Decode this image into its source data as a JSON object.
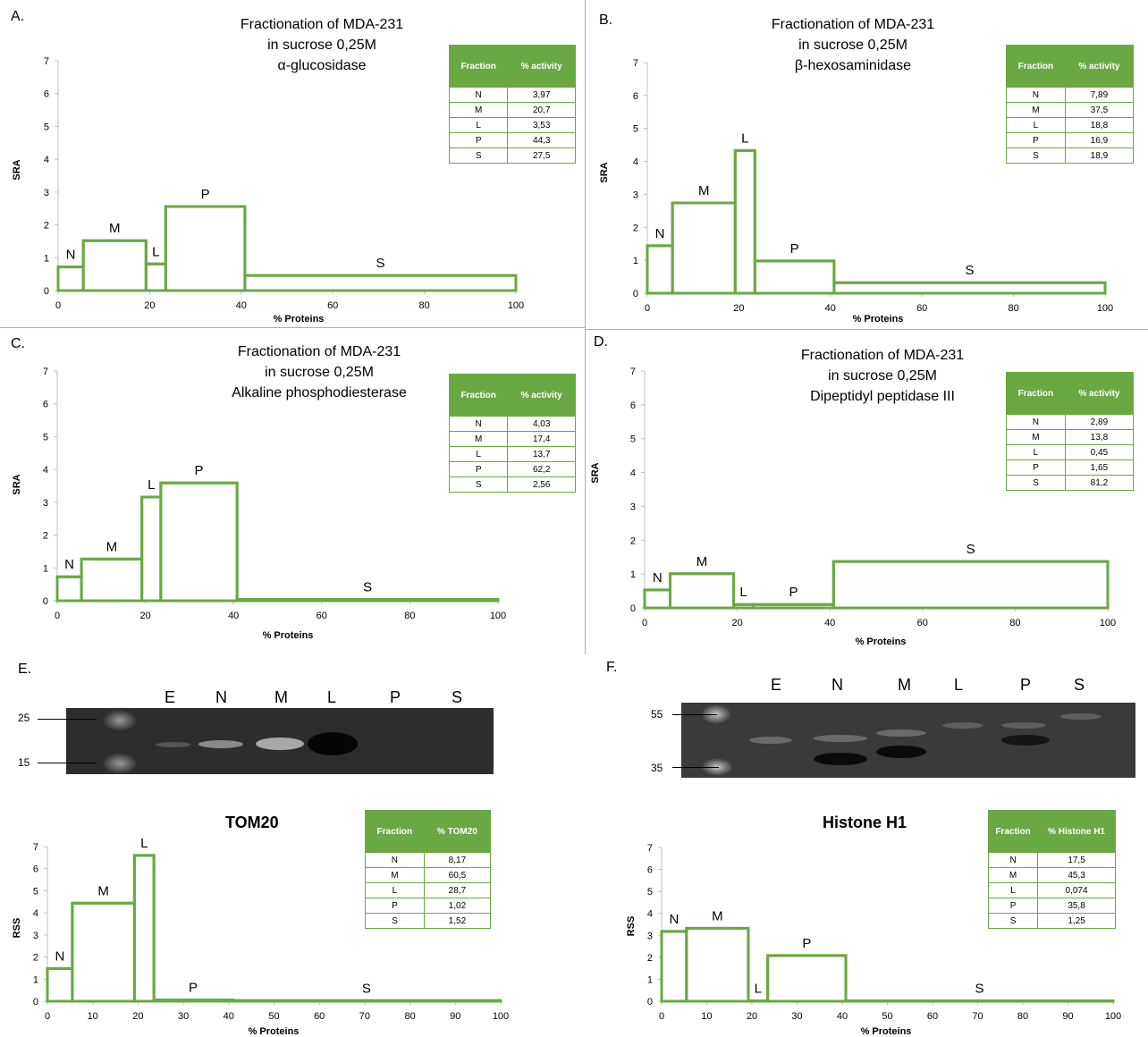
{
  "panels": {
    "A": "A.",
    "B": "B.",
    "C": "C.",
    "D": "D.",
    "E": "E.",
    "F": "F."
  },
  "titles": {
    "A": [
      "Fractionation of MDA-231",
      "in sucrose 0,25M",
      "α-glucosidase"
    ],
    "B": [
      "Fractionation of MDA-231",
      "in sucrose 0,25M",
      "β-hexosaminidase"
    ],
    "C": [
      "Fractionation of MDA-231",
      "in sucrose 0,25M",
      "Alkaline phosphodiesterase"
    ],
    "D": [
      "Fractionation of MDA-231",
      "in sucrose 0,25M",
      "Dipeptidyl peptidase III"
    ],
    "E": "TOM20",
    "F": "Histone H1"
  },
  "tables": {
    "A": {
      "headers": [
        "Fraction",
        "% activity"
      ],
      "rows": [
        [
          "N",
          "3,97"
        ],
        [
          "M",
          "20,7"
        ],
        [
          "L",
          "3,53"
        ],
        [
          "P",
          "44,3"
        ],
        [
          "S",
          "27,5"
        ]
      ]
    },
    "B": {
      "headers": [
        "Fraction",
        "% activity"
      ],
      "rows": [
        [
          "N",
          "7,89"
        ],
        [
          "M",
          "37,5"
        ],
        [
          "L",
          "18,8"
        ],
        [
          "P",
          "16,9"
        ],
        [
          "S",
          "18,9"
        ]
      ]
    },
    "C": {
      "headers": [
        "Fraction",
        "% activity"
      ],
      "rows": [
        [
          "N",
          "4,03"
        ],
        [
          "M",
          "17,4"
        ],
        [
          "L",
          "13,7"
        ],
        [
          "P",
          "62,2"
        ],
        [
          "S",
          "2,56"
        ]
      ]
    },
    "D": {
      "headers": [
        "Fraction",
        "% activity"
      ],
      "rows": [
        [
          "N",
          "2,89"
        ],
        [
          "M",
          "13,8"
        ],
        [
          "L",
          "0,45"
        ],
        [
          "P",
          "1,65"
        ],
        [
          "S",
          "81,2"
        ]
      ]
    },
    "E": {
      "headers": [
        "Fraction",
        "% TOM20"
      ],
      "rows": [
        [
          "N",
          "8,17"
        ],
        [
          "M",
          "60,5"
        ],
        [
          "L",
          "28,7"
        ],
        [
          "P",
          "1,02"
        ],
        [
          "S",
          "1,52"
        ]
      ]
    },
    "F": {
      "headers": [
        "Fraction",
        "% Histone H1"
      ],
      "rows": [
        [
          "N",
          "17,5"
        ],
        [
          "M",
          "45,3"
        ],
        [
          "L",
          "0,074"
        ],
        [
          "P",
          "35,8"
        ],
        [
          "S",
          "1,25"
        ]
      ]
    }
  },
  "blots": {
    "E": {
      "lanes": [
        "E",
        "N",
        "M",
        "L",
        "P",
        "S"
      ],
      "markers": [
        "25",
        "15"
      ]
    },
    "F": {
      "lanes": [
        "E",
        "N",
        "M",
        "L",
        "P",
        "S"
      ],
      "markers": [
        "55",
        "35"
      ]
    }
  },
  "colors": {
    "series": "#6aa843",
    "axis": "#bfbfbf"
  },
  "chart_data": [
    {
      "id": "A",
      "type": "area",
      "xlabel": "% Proteins",
      "ylabel": "SRA",
      "xlim": [
        0,
        100
      ],
      "ylim": [
        0,
        7
      ],
      "xticks": [
        "0",
        "20",
        "40",
        "60",
        "80",
        "100"
      ],
      "yticks": [
        "0",
        "1",
        "2",
        "3",
        "4",
        "5",
        "6",
        "7"
      ],
      "bars": [
        {
          "name": "N",
          "x0": 0,
          "x1": 5.5,
          "y": 0.72
        },
        {
          "name": "M",
          "x0": 5.5,
          "x1": 19.2,
          "y": 1.52
        },
        {
          "name": "L",
          "x0": 19.2,
          "x1": 23.5,
          "y": 0.81
        },
        {
          "name": "P",
          "x0": 23.5,
          "x1": 40.8,
          "y": 2.56
        },
        {
          "name": "S",
          "x0": 40.8,
          "x1": 100,
          "y": 0.46
        }
      ]
    },
    {
      "id": "B",
      "type": "area",
      "xlabel": "% Proteins",
      "ylabel": "SRA",
      "xlim": [
        0,
        100
      ],
      "ylim": [
        0,
        7
      ],
      "xticks": [
        "0",
        "20",
        "40",
        "60",
        "80",
        "100"
      ],
      "yticks": [
        "0",
        "1",
        "2",
        "3",
        "4",
        "5",
        "6",
        "7"
      ],
      "bars": [
        {
          "name": "N",
          "x0": 0,
          "x1": 5.5,
          "y": 1.44
        },
        {
          "name": "M",
          "x0": 5.5,
          "x1": 19.2,
          "y": 2.74
        },
        {
          "name": "L",
          "x0": 19.2,
          "x1": 23.5,
          "y": 4.33
        },
        {
          "name": "P",
          "x0": 23.5,
          "x1": 40.8,
          "y": 0.98
        },
        {
          "name": "S",
          "x0": 40.8,
          "x1": 100,
          "y": 0.32
        }
      ]
    },
    {
      "id": "C",
      "type": "area",
      "xlabel": "% Proteins",
      "ylabel": "SRA",
      "xlim": [
        0,
        100
      ],
      "ylim": [
        0,
        7
      ],
      "xticks": [
        "0",
        "20",
        "40",
        "60",
        "80",
        "100"
      ],
      "yticks": [
        "0",
        "1",
        "2",
        "3",
        "4",
        "5",
        "6",
        "7"
      ],
      "bars": [
        {
          "name": "N",
          "x0": 0,
          "x1": 5.5,
          "y": 0.73
        },
        {
          "name": "M",
          "x0": 5.5,
          "x1": 19.2,
          "y": 1.27
        },
        {
          "name": "L",
          "x0": 19.2,
          "x1": 23.5,
          "y": 3.16
        },
        {
          "name": "P",
          "x0": 23.5,
          "x1": 40.8,
          "y": 3.59
        },
        {
          "name": "S",
          "x0": 40.8,
          "x1": 100,
          "y": 0.04
        }
      ]
    },
    {
      "id": "D",
      "type": "area",
      "xlabel": "% Proteins",
      "ylabel": "SRA",
      "xlim": [
        0,
        100
      ],
      "ylim": [
        0,
        7
      ],
      "xticks": [
        "0",
        "20",
        "40",
        "60",
        "80",
        "100"
      ],
      "yticks": [
        "0",
        "1",
        "2",
        "3",
        "4",
        "5",
        "6",
        "7"
      ],
      "bars": [
        {
          "name": "N",
          "x0": 0,
          "x1": 5.5,
          "y": 0.53
        },
        {
          "name": "M",
          "x0": 5.5,
          "x1": 19.2,
          "y": 1.01
        },
        {
          "name": "L",
          "x0": 19.2,
          "x1": 23.5,
          "y": 0.1
        },
        {
          "name": "P",
          "x0": 23.5,
          "x1": 40.8,
          "y": 0.1
        },
        {
          "name": "S",
          "x0": 40.8,
          "x1": 100,
          "y": 1.37
        }
      ]
    },
    {
      "id": "E",
      "type": "area",
      "xlabel": "% Proteins",
      "ylabel": "RSS",
      "xlim": [
        0,
        100
      ],
      "ylim": [
        0,
        7
      ],
      "xticks": [
        "0",
        "10",
        "20",
        "30",
        "40",
        "50",
        "60",
        "70",
        "80",
        "90",
        "100"
      ],
      "yticks": [
        "0",
        "1",
        "2",
        "3",
        "4",
        "5",
        "6",
        "7"
      ],
      "bars": [
        {
          "name": "N",
          "x0": 0,
          "x1": 5.5,
          "y": 1.48
        },
        {
          "name": "M",
          "x0": 5.5,
          "x1": 19.2,
          "y": 4.44
        },
        {
          "name": "L",
          "x0": 19.2,
          "x1": 23.5,
          "y": 6.6
        },
        {
          "name": "P",
          "x0": 23.5,
          "x1": 40.8,
          "y": 0.06
        },
        {
          "name": "S",
          "x0": 40.8,
          "x1": 100,
          "y": 0.03
        }
      ]
    },
    {
      "id": "F",
      "type": "area",
      "xlabel": "% Proteins",
      "ylabel": "RSS",
      "xlim": [
        0,
        100
      ],
      "ylim": [
        0,
        7
      ],
      "xticks": [
        "0",
        "10",
        "20",
        "30",
        "40",
        "50",
        "60",
        "70",
        "80",
        "90",
        "100"
      ],
      "yticks": [
        "0",
        "1",
        "2",
        "3",
        "4",
        "5",
        "6",
        "7"
      ],
      "bars": [
        {
          "name": "N",
          "x0": 0,
          "x1": 5.5,
          "y": 3.18
        },
        {
          "name": "M",
          "x0": 5.5,
          "x1": 19.2,
          "y": 3.32
        },
        {
          "name": "L",
          "x0": 19.2,
          "x1": 23.5,
          "y": 0.02
        },
        {
          "name": "P",
          "x0": 23.5,
          "x1": 40.8,
          "y": 2.08
        },
        {
          "name": "S",
          "x0": 40.8,
          "x1": 100,
          "y": 0.02
        }
      ]
    }
  ]
}
